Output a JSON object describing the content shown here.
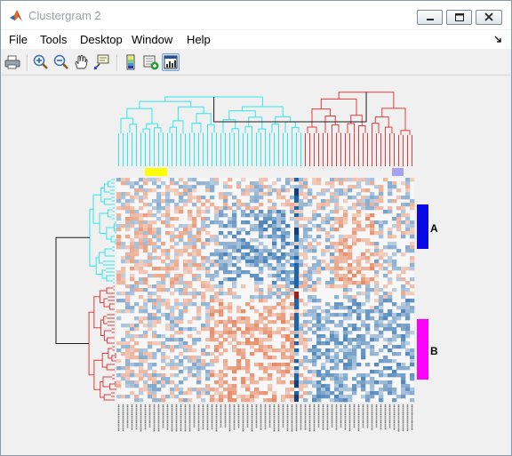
{
  "window": {
    "title": "Clustergram 2",
    "app_icon": "matlab-logo-icon",
    "buttons": [
      "minimize-icon",
      "maximize-icon",
      "close-icon"
    ]
  },
  "menubar": {
    "items": [
      "File",
      "Tools",
      "Desktop",
      "Window",
      "Help"
    ]
  },
  "toolbar": {
    "items": [
      "print-icon",
      "zoom-in-icon",
      "zoom-out-icon",
      "pan-hand-icon",
      "data-cursor-icon",
      "colorbar-icon",
      "insert-dendrogram-icon",
      "show-figure-icon"
    ],
    "active": "show-figure-icon"
  },
  "clustergram": {
    "row_groups": [
      {
        "label": "A",
        "color": "#0a0ae6"
      },
      {
        "label": "B",
        "color": "#ff00ff"
      }
    ],
    "column_group_colors": [
      "#ffff00",
      "#a7a2f0"
    ],
    "dendrogram_colors": {
      "cyan": "#2ee8ee",
      "red": "#e33b3b",
      "black": "#1a1a1a"
    },
    "heatmap_colors": {
      "high": "#e06a3a",
      "low": "#1f66a8",
      "neutral": "#f7f7f7"
    }
  }
}
